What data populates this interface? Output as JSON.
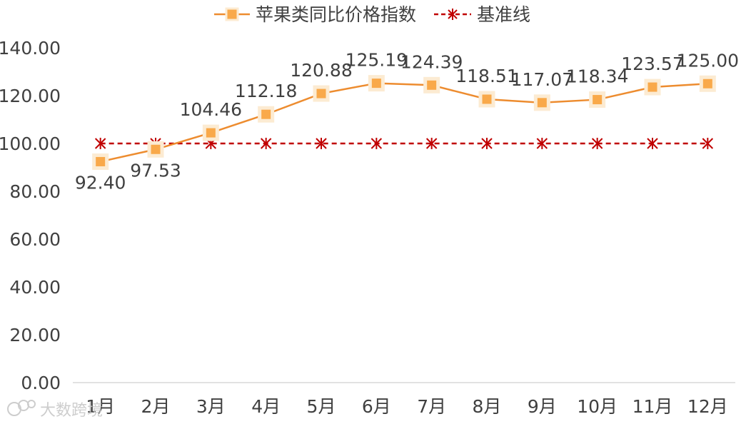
{
  "chart_data": {
    "type": "line",
    "categories": [
      "1月",
      "2月",
      "3月",
      "4月",
      "5月",
      "6月",
      "7月",
      "8月",
      "9月",
      "10月",
      "11月",
      "12月"
    ],
    "series": [
      {
        "name": "苹果类同比价格指数",
        "values": [
          92.4,
          97.53,
          104.46,
          112.18,
          120.88,
          125.19,
          124.39,
          118.51,
          117.07,
          118.34,
          123.57,
          125.0
        ],
        "labels": [
          "92.40",
          "97.53",
          "104.46",
          "112.18",
          "120.88",
          "125.19",
          "124.39",
          "118.51",
          "117.07",
          "118.34",
          "123.57",
          "125.00"
        ],
        "color": "#ED8C2F",
        "marker_color": "#F9A94A",
        "marker": "square"
      },
      {
        "name": "基准线",
        "values": [
          100,
          100,
          100,
          100,
          100,
          100,
          100,
          100,
          100,
          100,
          100,
          100
        ],
        "color": "#C00000",
        "marker": "star",
        "dash": true
      }
    ],
    "ylim": [
      0,
      140
    ],
    "yticks": [
      "0.00",
      "20.00",
      "40.00",
      "60.00",
      "80.00",
      "100.00",
      "120.00",
      "140.00"
    ],
    "grid": false,
    "legend": "top-center",
    "title": "",
    "xlabel": "",
    "ylabel": ""
  },
  "watermark": "大数跨境"
}
